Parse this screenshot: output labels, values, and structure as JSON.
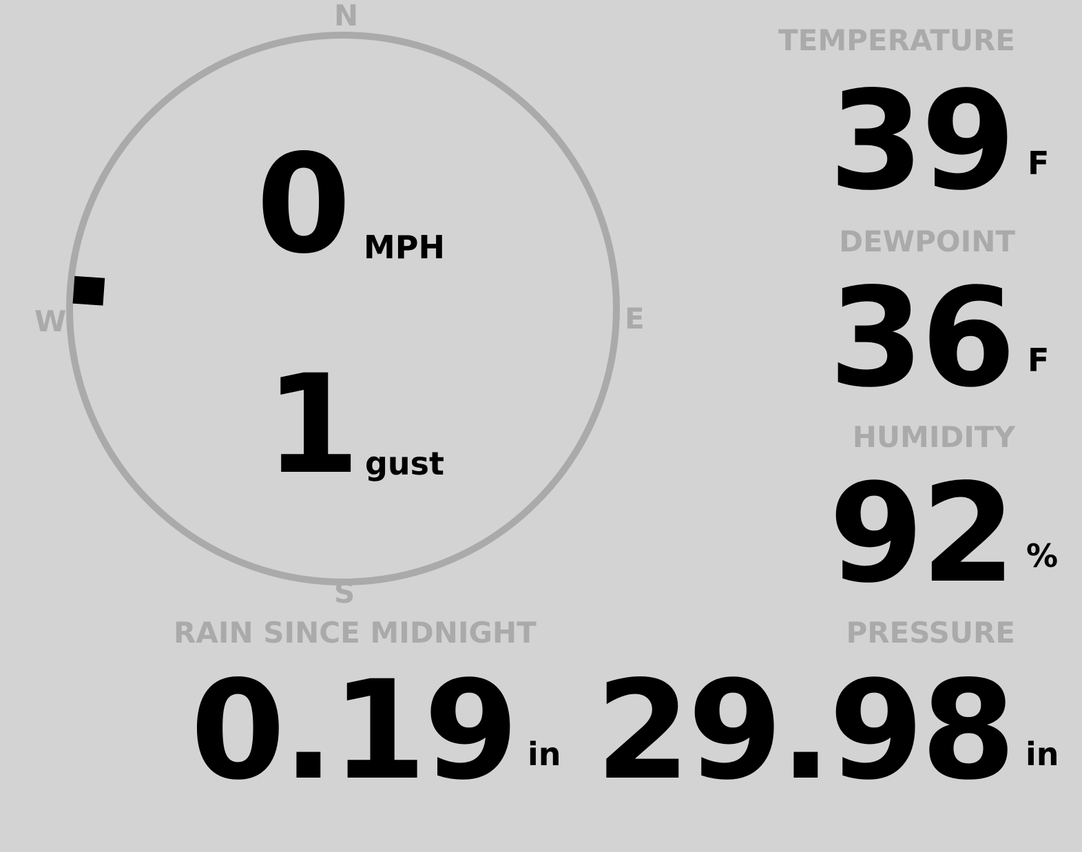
{
  "colors": {
    "background": "#d3d3d3",
    "label": "#aaaaaa",
    "value": "#000000",
    "compass_ring": "#aaaaaa"
  },
  "wind": {
    "compass": {
      "n": "N",
      "e": "E",
      "s": "S",
      "w": "W"
    },
    "direction_deg": 274,
    "speed": "0",
    "speed_unit": "MPH",
    "gust": "1",
    "gust_unit": "gust"
  },
  "temperature": {
    "label": "TEMPERATURE",
    "value": "39",
    "unit": "F"
  },
  "dewpoint": {
    "label": "DEWPOINT",
    "value": "36",
    "unit": "F"
  },
  "humidity": {
    "label": "HUMIDITY",
    "value": "92",
    "unit": "%"
  },
  "rain": {
    "label": "RAIN SINCE MIDNIGHT",
    "value": "0.19",
    "unit": "in"
  },
  "pressure": {
    "label": "PRESSURE",
    "value": "29.98",
    "unit": "in"
  }
}
